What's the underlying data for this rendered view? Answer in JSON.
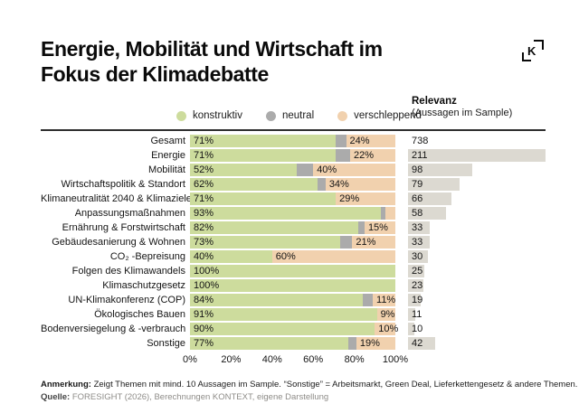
{
  "title_line1": "Energie, Mobilität und Wirtschaft im",
  "title_line2": "Fokus der Klimadebatte",
  "logo_letter": "K",
  "legend": {
    "items": [
      {
        "label": "konstruktiv",
        "color": "#cddc9d"
      },
      {
        "label": "neutral",
        "color": "#ababab"
      },
      {
        "label": "verschleppend",
        "color": "#f1d1ae"
      }
    ]
  },
  "relevanz_header": {
    "title": "Relevanz",
    "subtitle": "(Aussagen im Sample)"
  },
  "chart_data": {
    "type": "bar",
    "orientation": "horizontal",
    "stacked": true,
    "title": "Energie, Mobilität und Wirtschaft im Fokus der Klimadebatte",
    "xlabel": "",
    "ylabel": "",
    "xlim": [
      0,
      100
    ],
    "x_ticks": [
      "0%",
      "20%",
      "40%",
      "60%",
      "80%",
      "100%"
    ],
    "grid": false,
    "legend_position": "top",
    "series_names": [
      "konstruktiv",
      "neutral",
      "verschleppend"
    ],
    "colors": {
      "konstruktiv": "#cddc9d",
      "neutral": "#ababab",
      "verschleppend": "#f1d1ae",
      "relevanz_bar": "#dcd9d1"
    },
    "relevanz_bar_scale_max": 211,
    "rows": [
      {
        "label": "Gesamt",
        "konstruktiv": 71,
        "neutral": 5,
        "verschleppend": 24,
        "label_konstruktiv": "71%",
        "label_verschleppend": "24%",
        "relevanz": 738
      },
      {
        "label": "Energie",
        "konstruktiv": 71,
        "neutral": 7,
        "verschleppend": 22,
        "label_konstruktiv": "71%",
        "label_verschleppend": "22%",
        "relevanz": 211
      },
      {
        "label": "Mobilität",
        "konstruktiv": 52,
        "neutral": 8,
        "verschleppend": 40,
        "label_konstruktiv": "52%",
        "label_verschleppend": "40%",
        "relevanz": 98
      },
      {
        "label": "Wirtschaftspolitik & Standort",
        "konstruktiv": 62,
        "neutral": 4,
        "verschleppend": 34,
        "label_konstruktiv": "62%",
        "label_verschleppend": "34%",
        "relevanz": 79
      },
      {
        "label": "Klimaneutralität 2040 & Klimaziele",
        "konstruktiv": 71,
        "neutral": 0,
        "verschleppend": 29,
        "label_konstruktiv": "71%",
        "label_verschleppend": "29%",
        "relevanz": 66
      },
      {
        "label": "Anpassungsmaßnahmen",
        "konstruktiv": 93,
        "neutral": 2,
        "verschleppend": 5,
        "label_konstruktiv": "93%",
        "label_verschleppend": "",
        "relevanz": 58
      },
      {
        "label": "Ernährung & Forstwirtschaft",
        "konstruktiv": 82,
        "neutral": 3,
        "verschleppend": 15,
        "label_konstruktiv": "82%",
        "label_verschleppend": "15%",
        "relevanz": 33
      },
      {
        "label": "Gebäudesanierung & Wohnen",
        "konstruktiv": 73,
        "neutral": 6,
        "verschleppend": 21,
        "label_konstruktiv": "73%",
        "label_verschleppend": "21%",
        "relevanz": 33
      },
      {
        "label": "CO₂ -Bepreisung",
        "konstruktiv": 40,
        "neutral": 0,
        "verschleppend": 60,
        "label_konstruktiv": "40%",
        "label_verschleppend": "60%",
        "relevanz": 30
      },
      {
        "label": "Folgen des Klimawandels",
        "konstruktiv": 100,
        "neutral": 0,
        "verschleppend": 0,
        "label_konstruktiv": "100%",
        "label_verschleppend": "",
        "relevanz": 25
      },
      {
        "label": "Klimaschutzgesetz",
        "konstruktiv": 100,
        "neutral": 0,
        "verschleppend": 0,
        "label_konstruktiv": "100%",
        "label_verschleppend": "",
        "relevanz": 23
      },
      {
        "label": "UN-Klimakonferenz (COP)",
        "konstruktiv": 84,
        "neutral": 5,
        "verschleppend": 11,
        "label_konstruktiv": "84%",
        "label_verschleppend": "11%",
        "relevanz": 19
      },
      {
        "label": "Ökologisches Bauen",
        "konstruktiv": 91,
        "neutral": 0,
        "verschleppend": 9,
        "label_konstruktiv": "91%",
        "label_verschleppend": "9%",
        "relevanz": 11
      },
      {
        "label": "Bodenversiegelung & -verbrauch",
        "konstruktiv": 90,
        "neutral": 0,
        "verschleppend": 10,
        "label_konstruktiv": "90%",
        "label_verschleppend": "10%",
        "relevanz": 10
      },
      {
        "label": "Sonstige",
        "konstruktiv": 77,
        "neutral": 4,
        "verschleppend": 19,
        "label_konstruktiv": "77%",
        "label_verschleppend": "19%",
        "relevanz": 42
      }
    ]
  },
  "footnotes": {
    "anmerkung_label": "Anmerkung:",
    "anmerkung_text": "Zeigt Themen mit mind. 10 Aussagen im Sample. “Sonstige” = Arbeitsmarkt, Green Deal, Lieferkettengesetz & andere Themen.",
    "quelle_label": "Quelle:",
    "quelle_text": "FORESIGHT (2026), Berechnungen KONTEXT, eigene Darstellung"
  }
}
